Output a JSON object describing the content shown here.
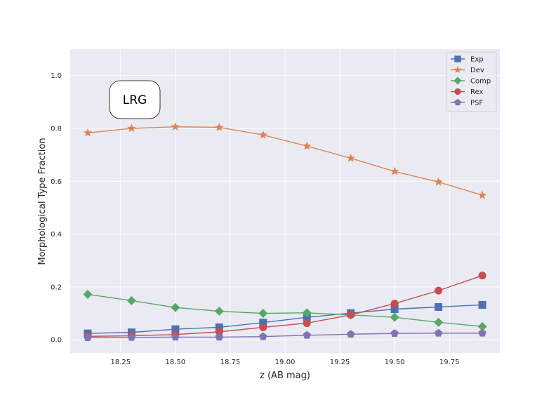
{
  "chart_data": {
    "type": "line",
    "annotation": "LRG",
    "xlabel": "z (AB mag)",
    "ylabel": "Morphological Type Fraction",
    "xlim": [
      18.02,
      19.98
    ],
    "ylim": [
      -0.05,
      1.1
    ],
    "xticks": [
      18.25,
      18.5,
      18.75,
      19.0,
      19.25,
      19.5,
      19.75
    ],
    "xtick_labels": [
      "18.25",
      "18.50",
      "18.75",
      "19.00",
      "19.25",
      "19.50",
      "19.75"
    ],
    "yticks": [
      0.0,
      0.2,
      0.4,
      0.6,
      0.8,
      1.0
    ],
    "ytick_labels": [
      "0.0",
      "0.2",
      "0.4",
      "0.6",
      "0.8",
      "1.0"
    ],
    "grid": true,
    "legend_position": "top-right",
    "x": [
      18.1,
      18.3,
      18.5,
      18.7,
      18.9,
      19.1,
      19.3,
      19.5,
      19.7,
      19.9
    ],
    "series": [
      {
        "name": "Exp",
        "color": "#4c72b0",
        "marker": "square",
        "values": [
          0.024,
          0.028,
          0.04,
          0.047,
          0.065,
          0.085,
          0.101,
          0.116,
          0.124,
          0.132
        ]
      },
      {
        "name": "Dev",
        "color": "#dd8452",
        "marker": "star",
        "values": [
          0.783,
          0.8,
          0.806,
          0.804,
          0.775,
          0.733,
          0.687,
          0.637,
          0.597,
          0.547
        ]
      },
      {
        "name": "Comp",
        "color": "#55a868",
        "marker": "diamond",
        "values": [
          0.172,
          0.148,
          0.122,
          0.108,
          0.1,
          0.102,
          0.094,
          0.085,
          0.066,
          0.05
        ]
      },
      {
        "name": "Rex",
        "color": "#c44e52",
        "marker": "circle",
        "values": [
          0.013,
          0.015,
          0.02,
          0.03,
          0.047,
          0.063,
          0.094,
          0.137,
          0.186,
          0.243
        ]
      },
      {
        "name": "PSF",
        "color": "#8172b3",
        "marker": "pentagon",
        "values": [
          0.008,
          0.009,
          0.01,
          0.01,
          0.012,
          0.017,
          0.021,
          0.024,
          0.025,
          0.025
        ]
      }
    ]
  }
}
